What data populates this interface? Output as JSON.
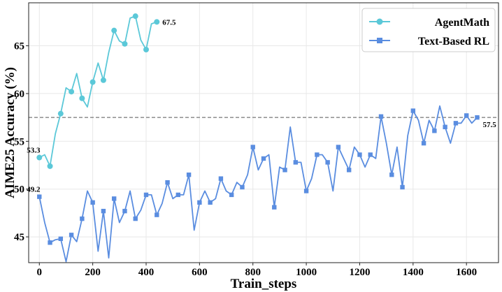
{
  "chart_data": {
    "type": "line",
    "title": "",
    "xlabel": "Train_steps",
    "ylabel": "AIME25 Accuracy (%)",
    "xlim": [
      -40,
      1720
    ],
    "ylim": [
      42.3,
      69.5
    ],
    "xticks": [
      0,
      200,
      400,
      600,
      800,
      1000,
      1200,
      1400,
      1600
    ],
    "yticks": [
      45,
      50,
      55,
      60,
      65
    ],
    "grid": true,
    "legend_position": "top-right",
    "reference_line": {
      "y": 57.5,
      "style": "dashed",
      "color": "#777777"
    },
    "series": [
      {
        "name": "AgentMath",
        "color": "#5bc8d8",
        "marker": "circle",
        "x": [
          0,
          20,
          40,
          60,
          80,
          100,
          120,
          140,
          160,
          180,
          200,
          220,
          240,
          260,
          280,
          300,
          320,
          340,
          360,
          380,
          400,
          420,
          440
        ],
        "y": [
          53.3,
          53.6,
          52.4,
          55.8,
          57.9,
          60.6,
          60.2,
          62.1,
          59.5,
          58.6,
          61.2,
          63.2,
          61.4,
          64.3,
          66.6,
          65.5,
          65.2,
          67.9,
          68.1,
          65.6,
          64.6,
          67.3,
          67.5
        ],
        "markers_at": [
          0,
          40,
          80,
          120,
          160,
          200,
          240,
          280,
          320,
          360,
          400,
          440
        ],
        "start_label": "53.3",
        "end_label": "67.5"
      },
      {
        "name": "Text-Based RL",
        "color": "#5a8de0",
        "marker": "square",
        "x": [
          0,
          20,
          40,
          60,
          80,
          100,
          120,
          140,
          160,
          180,
          200,
          220,
          240,
          260,
          280,
          300,
          320,
          340,
          360,
          380,
          400,
          420,
          440,
          460,
          480,
          500,
          520,
          540,
          560,
          580,
          600,
          620,
          640,
          660,
          680,
          700,
          720,
          740,
          760,
          780,
          800,
          820,
          840,
          860,
          880,
          900,
          920,
          940,
          960,
          980,
          1000,
          1020,
          1040,
          1060,
          1080,
          1100,
          1120,
          1140,
          1160,
          1180,
          1200,
          1220,
          1240,
          1260,
          1280,
          1300,
          1320,
          1340,
          1360,
          1380,
          1400,
          1420,
          1440,
          1460,
          1480,
          1500,
          1520,
          1540,
          1560,
          1580,
          1600,
          1620,
          1640
        ],
        "y": [
          49.2,
          46.5,
          44.4,
          44.7,
          44.8,
          42.4,
          45.2,
          44.5,
          46.9,
          49.8,
          48.6,
          43.5,
          47.7,
          42.8,
          49.0,
          46.5,
          47.7,
          49.8,
          46.9,
          47.8,
          49.4,
          49.4,
          47.3,
          48.5,
          50.7,
          49.0,
          49.4,
          49.4,
          51.5,
          45.7,
          48.6,
          49.8,
          48.6,
          49.0,
          51.1,
          49.8,
          49.4,
          50.7,
          50.2,
          51.5,
          54.4,
          52.0,
          53.2,
          53.6,
          48.1,
          52.3,
          52.0,
          56.5,
          52.8,
          52.8,
          49.8,
          51.1,
          53.6,
          53.6,
          52.8,
          49.8,
          54.4,
          53.2,
          52.0,
          54.4,
          53.6,
          52.3,
          53.6,
          53.2,
          57.6,
          54.8,
          51.5,
          54.4,
          50.2,
          55.6,
          58.2,
          57.2,
          54.8,
          57.2,
          56.1,
          58.7,
          56.5,
          54.8,
          56.9,
          56.9,
          57.7,
          56.9,
          57.5
        ],
        "markers_at": [
          0,
          40,
          80,
          120,
          160,
          200,
          240,
          280,
          320,
          360,
          400,
          440,
          480,
          520,
          560,
          600,
          640,
          680,
          720,
          760,
          800,
          840,
          880,
          920,
          960,
          1000,
          1040,
          1080,
          1120,
          1160,
          1200,
          1240,
          1280,
          1320,
          1360,
          1400,
          1440,
          1480,
          1520,
          1560,
          1600,
          1640
        ],
        "start_label": "49.2",
        "end_label": "57.5"
      }
    ]
  }
}
